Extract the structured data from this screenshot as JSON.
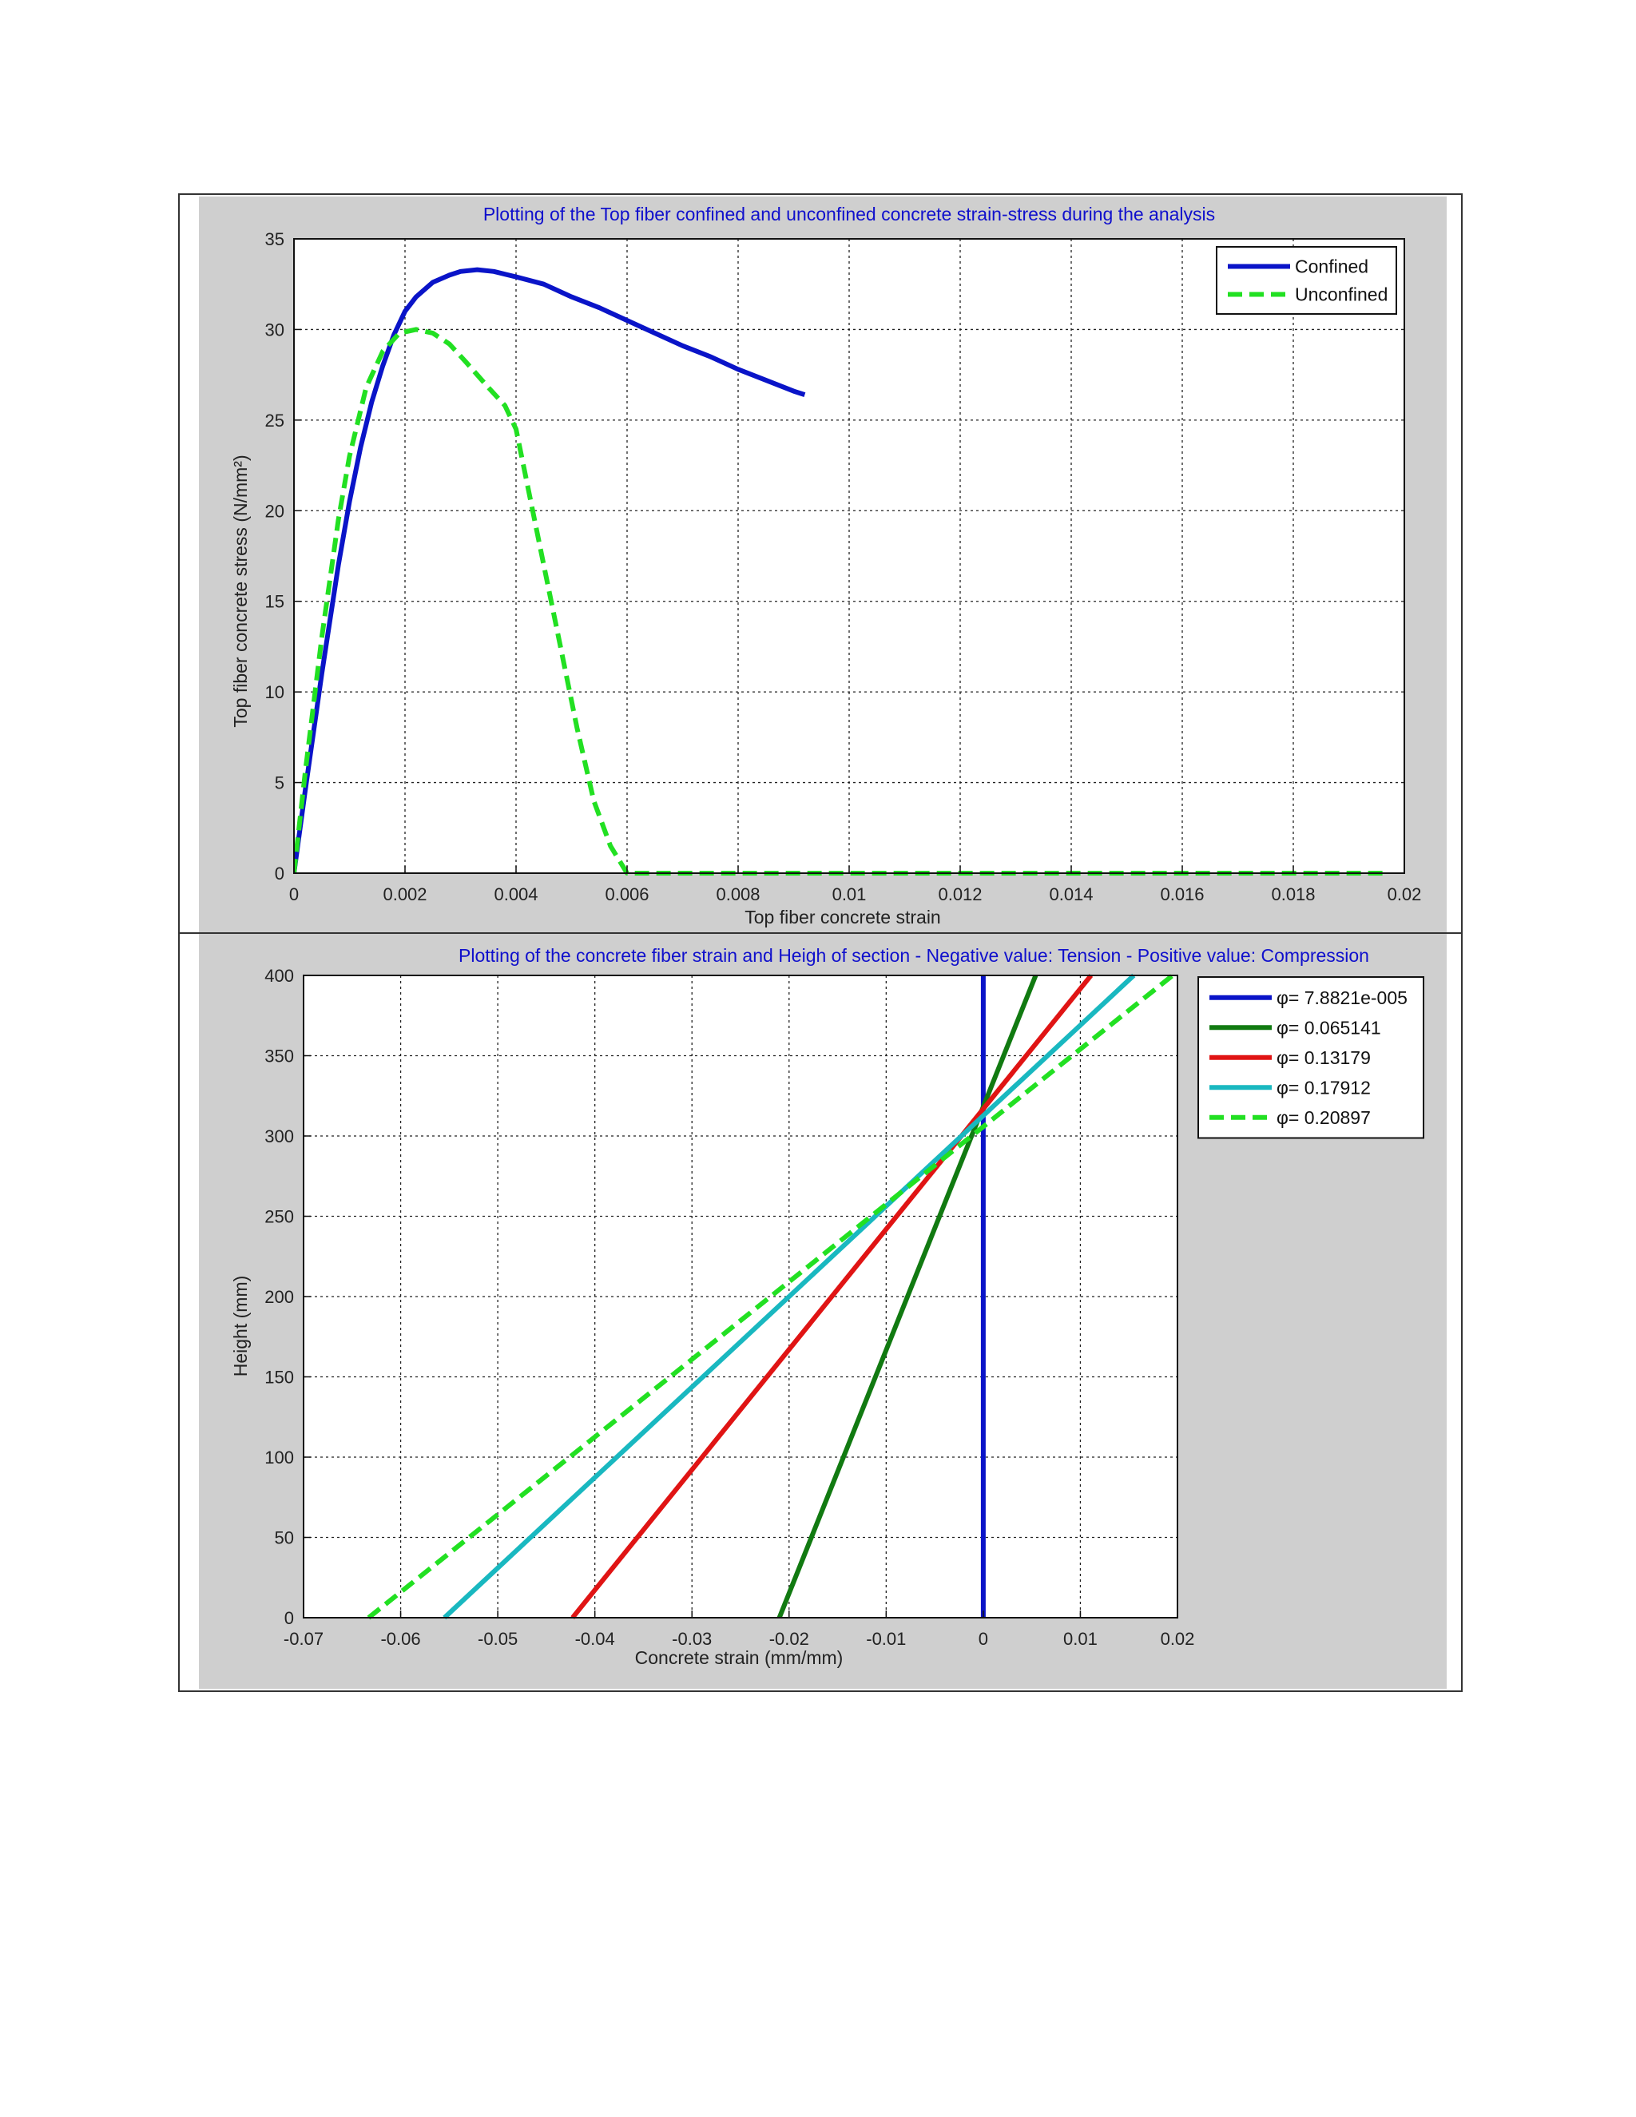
{
  "colors": {
    "panel_background": "#cfcfcf",
    "title_color": "#1010cc",
    "grid_color": "#222222"
  },
  "chart_data": [
    {
      "type": "line",
      "title": "Plotting of the Top fiber confined and unconfined concrete strain-stress during the analysis",
      "xlabel": "Top fiber concrete strain",
      "ylabel": "Top fiber concrete stress (N/mm²)",
      "xlim": [
        0,
        0.02
      ],
      "ylim": [
        0,
        35
      ],
      "xticks": [
        0,
        0.002,
        0.004,
        0.006,
        0.008,
        0.01,
        0.012,
        0.014,
        0.016,
        0.018,
        0.02
      ],
      "xtick_labels": [
        "0",
        "0.002",
        "0.004",
        "0.006",
        "0.008",
        "0.01",
        "0.012",
        "0.014",
        "0.016",
        "0.018",
        "0.02"
      ],
      "yticks": [
        0,
        5,
        10,
        15,
        20,
        25,
        30,
        35
      ],
      "ytick_labels": [
        "0",
        "5",
        "10",
        "15",
        "20",
        "25",
        "30",
        "35"
      ],
      "grid": true,
      "legend_position": "top-right",
      "series": [
        {
          "name": "Confined",
          "color": "#0a14c8",
          "dash": false,
          "x": [
            0,
            0.0002,
            0.0005,
            0.0008,
            0.001,
            0.0012,
            0.0014,
            0.0016,
            0.0018,
            0.002,
            0.0022,
            0.0025,
            0.0028,
            0.003,
            0.0033,
            0.0036,
            0.004,
            0.0045,
            0.005,
            0.0055,
            0.006,
            0.0065,
            0.007,
            0.0075,
            0.008,
            0.0085,
            0.009,
            0.0092
          ],
          "y": [
            0,
            4.5,
            11,
            17,
            20.5,
            23.5,
            26,
            28,
            29.7,
            31,
            31.8,
            32.6,
            33,
            33.2,
            33.3,
            33.2,
            32.9,
            32.5,
            31.8,
            31.2,
            30.5,
            29.8,
            29.1,
            28.5,
            27.8,
            27.2,
            26.6,
            26.4
          ]
        },
        {
          "name": "Unconfined",
          "color": "#22e022",
          "dash": true,
          "x": [
            0,
            0.0002,
            0.0005,
            0.0008,
            0.001,
            0.0013,
            0.0016,
            0.0019,
            0.0022,
            0.0025,
            0.0028,
            0.0031,
            0.0035,
            0.0038,
            0.004,
            0.0042,
            0.0045,
            0.0048,
            0.0051,
            0.0054,
            0.0057,
            0.006,
            0.008,
            0.01,
            0.012,
            0.014,
            0.016,
            0.018,
            0.0197
          ],
          "y": [
            0,
            5.5,
            13,
            19.5,
            23,
            26.8,
            28.8,
            29.8,
            30,
            29.8,
            29.2,
            28.2,
            26.8,
            25.8,
            24.5,
            21.5,
            17,
            12.5,
            8,
            4,
            1.5,
            0,
            0,
            0,
            0,
            0,
            0,
            0,
            0
          ]
        }
      ]
    },
    {
      "type": "line",
      "title": "Plotting of the concrete fiber strain and Heigh of section - Negative value: Tension - Positive value: Compression",
      "xlabel": "Concrete strain (mm/mm)",
      "ylabel": "Height (mm)",
      "xlim": [
        -0.07,
        0.02
      ],
      "ylim": [
        0,
        400
      ],
      "xticks": [
        -0.07,
        -0.06,
        -0.05,
        -0.04,
        -0.03,
        -0.02,
        -0.01,
        0,
        0.01,
        0.02
      ],
      "xtick_labels": [
        "-0.07",
        "-0.06",
        "-0.05",
        "-0.04",
        "-0.03",
        "-0.02",
        "-0.01",
        "0",
        "0.01",
        "0.02"
      ],
      "yticks": [
        0,
        50,
        100,
        150,
        200,
        250,
        300,
        350,
        400
      ],
      "ytick_labels": [
        "0",
        "50",
        "100",
        "150",
        "200",
        "250",
        "300",
        "350",
        "400"
      ],
      "grid": true,
      "legend_position": "top-right",
      "series": [
        {
          "name": "φ= 7.8821e-005",
          "color": "#0a14c8",
          "dash": false,
          "x": [
            0,
            0
          ],
          "y": [
            0,
            400
          ]
        },
        {
          "name": "φ= 0.065141",
          "color": "#117a11",
          "dash": false,
          "x": [
            -0.021,
            0.0054
          ],
          "y": [
            0,
            400
          ]
        },
        {
          "name": "φ= 0.13179",
          "color": "#e01414",
          "dash": false,
          "x": [
            -0.0423,
            0.0111
          ],
          "y": [
            0,
            400
          ]
        },
        {
          "name": "φ= 0.17912",
          "color": "#19b8c0",
          "dash": false,
          "x": [
            -0.0555,
            0.0155
          ],
          "y": [
            0,
            400
          ]
        },
        {
          "name": "φ= 0.20897",
          "color": "#22e022",
          "dash": true,
          "x": [
            -0.0633,
            0.0195
          ],
          "y": [
            0,
            400
          ]
        }
      ]
    }
  ]
}
